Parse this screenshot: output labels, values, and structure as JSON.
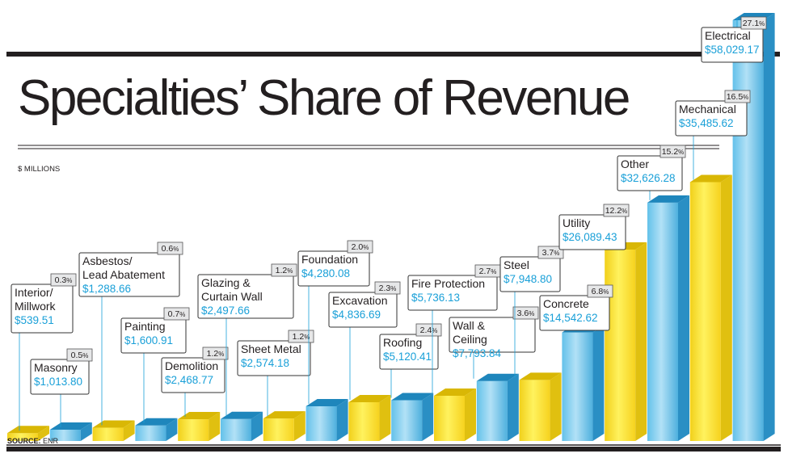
{
  "chart_data": {
    "type": "bar",
    "title": "Specialties’ Share of Revenue",
    "ylabel": "$ MILLIONS",
    "source_label": "SOURCE:",
    "source_value": "ENR",
    "categories": [
      "Interior/ Millwork",
      "Masonry",
      "Asbestos/ Lead Abatement",
      "Painting",
      "Demolition",
      "Glazing & Curtain Wall",
      "Sheet Metal",
      "Foundation",
      "Excavation",
      "Roofing",
      "Fire Protection",
      "Wall & Ceiling",
      "Steel",
      "Concrete",
      "Utility",
      "Other",
      "Mechanical",
      "Electrical"
    ],
    "values": [
      539.51,
      1013.8,
      1288.66,
      1600.91,
      2468.77,
      2497.66,
      2574.18,
      4280.08,
      4836.69,
      5120.41,
      5736.13,
      7793.84,
      7948.8,
      14542.62,
      26089.43,
      32626.28,
      35485.62,
      58029.17
    ],
    "value_labels": [
      "$539.51",
      "$1,013.80",
      "$1,288.66",
      "$1,600.91",
      "$2,468.77",
      "$2,497.66",
      "$2,574.18",
      "$4,280.08",
      "$4,836.69",
      "$5,120.41",
      "$5,736.13",
      "$7,793.84",
      "$7,948.80",
      "$14,542.62",
      "$26,089.43",
      "$32,626.28",
      "$35,485.62",
      "$58,029.17"
    ],
    "shares": [
      "0.3",
      "0.5",
      "0.6",
      "0.7",
      "1.2",
      "1.2",
      "1.2",
      "2.0",
      "2.3",
      "2.4",
      "2.7",
      "3.6",
      "3.7",
      "6.8",
      "12.2",
      "15.2",
      "16.5",
      "27.1"
    ],
    "share_unit": "%",
    "colors": {
      "yellow": "#F8D92E",
      "blue": "#4FB3E0",
      "label_value": "#1AA0D8",
      "rule": "#231f20"
    }
  }
}
